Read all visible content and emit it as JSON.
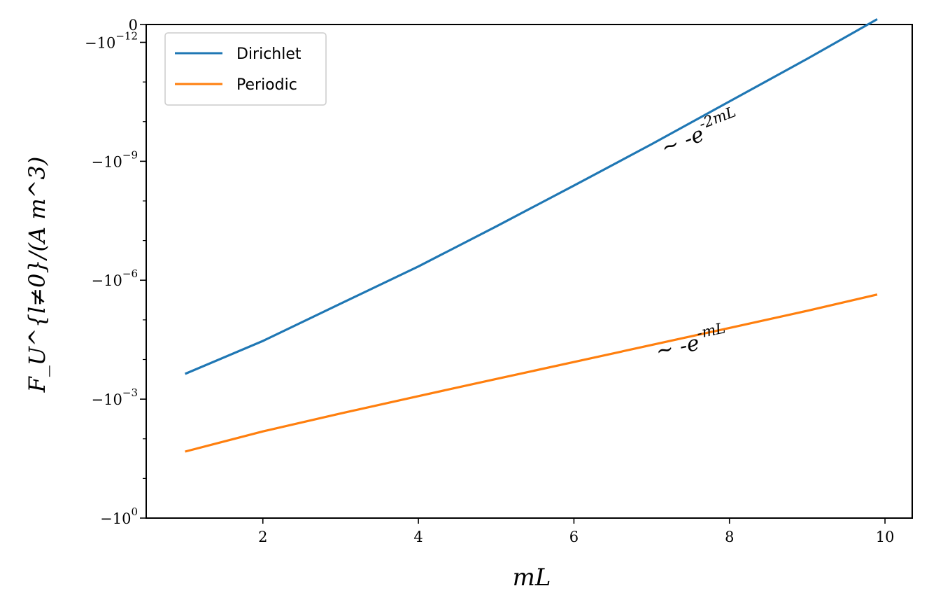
{
  "chart_data": {
    "type": "line",
    "title": "",
    "xlabel": "mL",
    "ylabel": "F_U^{l≠0}/(A m^3)",
    "xlim": [
      0.5,
      10.35
    ],
    "ylim_log10_of_negative": [
      0,
      -12.0
    ],
    "y_scale": "symlog",
    "grid": false,
    "legend_position": "upper-left",
    "x_ticks": [
      2,
      4,
      6,
      8,
      10
    ],
    "y_ticks": [
      {
        "value": 0,
        "label": "0"
      },
      {
        "value": -1e-12,
        "label": "-10^-12"
      },
      {
        "value": -1e-09,
        "label": "-10^-9"
      },
      {
        "value": -1e-06,
        "label": "-10^-6"
      },
      {
        "value": -0.001,
        "label": "-10^-3"
      },
      {
        "value": -1,
        "label": "-10^0"
      }
    ],
    "x": [
      1.0,
      2.0,
      3.0,
      4.0,
      5.0,
      6.0,
      7.0,
      8.0,
      9.0,
      9.9
    ],
    "series": [
      {
        "name": "Dirichlet",
        "color": "#1f77b4",
        "values": [
          -0.00023,
          -3.4e-05,
          -3.9e-06,
          -4.5e-07,
          -4.4e-08,
          -4.1e-09,
          -3.7e-10,
          -3.1e-11,
          -2.6e-12,
          -2.6e-13
        ]
      },
      {
        "name": "Periodic",
        "color": "#ff7f0e",
        "values": [
          -0.021,
          -0.0065,
          -0.0023,
          -0.00084,
          -0.00031,
          -0.000116,
          -4.3e-05,
          -1.6e-05,
          -5.9e-06,
          -2.3e-06
        ]
      }
    ],
    "annotations": [
      {
        "text": "~ -e",
        "sup": "-2mL",
        "near_series": "Dirichlet"
      },
      {
        "text": "~ -e",
        "sup": "-mL",
        "near_series": "Periodic"
      }
    ]
  }
}
